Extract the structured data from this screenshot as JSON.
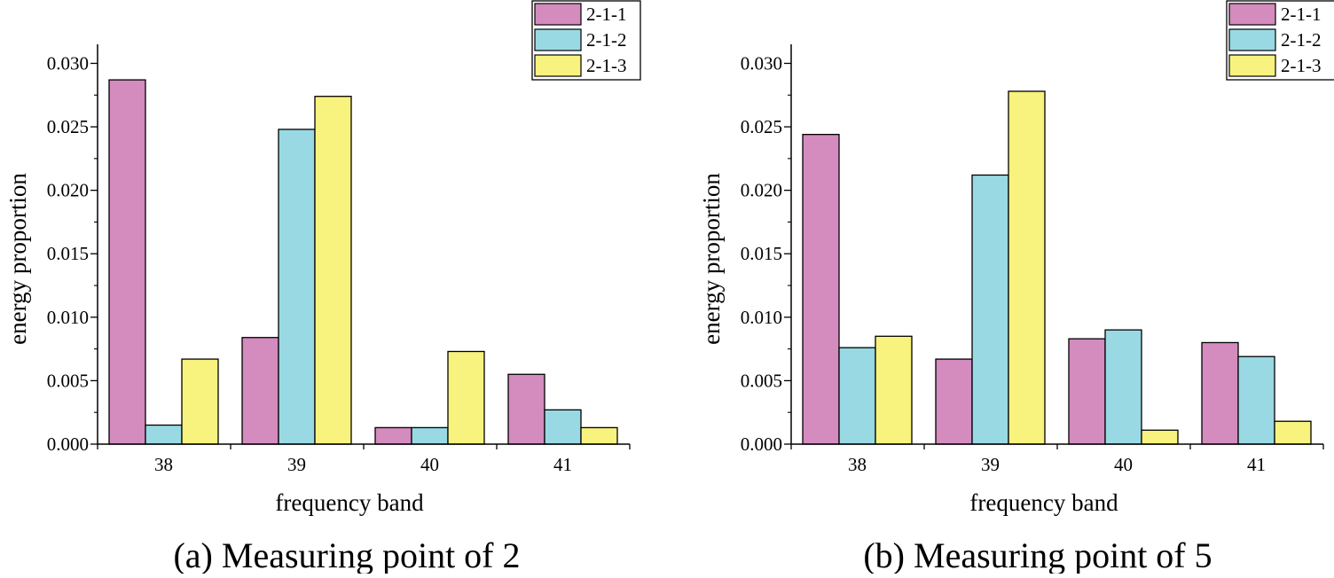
{
  "chart_data": [
    {
      "type": "bar",
      "caption": "(a) Measuring point of 2",
      "xlabel": "frequency band",
      "ylabel": "energy proportion",
      "categories": [
        "38",
        "39",
        "40",
        "41"
      ],
      "ylim": [
        0,
        0.0315
      ],
      "yticks": [
        "0.000",
        "0.005",
        "0.010",
        "0.015",
        "0.020",
        "0.025",
        "0.030"
      ],
      "series": [
        {
          "name": "2-1-1",
          "color": "#D48BBE",
          "values": [
            0.0287,
            0.0084,
            0.0013,
            0.0055
          ]
        },
        {
          "name": "2-1-2",
          "color": "#99D9E3",
          "values": [
            0.0015,
            0.0248,
            0.0013,
            0.0027
          ]
        },
        {
          "name": "2-1-3",
          "color": "#F8F27E",
          "values": [
            0.0067,
            0.0274,
            0.0073,
            0.0013
          ]
        }
      ]
    },
    {
      "type": "bar",
      "caption": "(b) Measuring point of 5",
      "xlabel": "frequency band",
      "ylabel": "energy proportion",
      "categories": [
        "38",
        "39",
        "40",
        "41"
      ],
      "ylim": [
        0,
        0.0315
      ],
      "yticks": [
        "0.000",
        "0.005",
        "0.010",
        "0.015",
        "0.020",
        "0.025",
        "0.030"
      ],
      "series": [
        {
          "name": "2-1-1",
          "color": "#D48BBE",
          "values": [
            0.0244,
            0.0067,
            0.0083,
            0.008
          ]
        },
        {
          "name": "2-1-2",
          "color": "#99D9E3",
          "values": [
            0.0076,
            0.0212,
            0.009,
            0.0069
          ]
        },
        {
          "name": "2-1-3",
          "color": "#F8F27E",
          "values": [
            0.0085,
            0.0278,
            0.0011,
            0.0018
          ]
        }
      ]
    }
  ]
}
